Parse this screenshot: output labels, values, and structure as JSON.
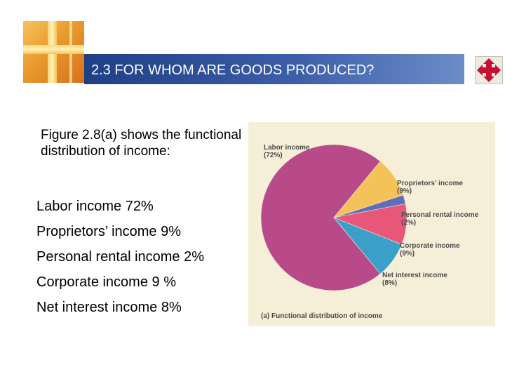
{
  "header": {
    "title": "2.3 FOR WHOM ARE GOODS PRODUCED?",
    "nav_icon": "four-way-arrows-icon"
  },
  "body": {
    "intro": "Figure 2.8(a) shows the functional distribution of income:",
    "items": [
      "Labor income 72%",
      "Proprietors’ income 9%",
      "Personal rental income 2%",
      "Corporate income 9 %",
      "Net interest income 8%"
    ]
  },
  "chart_data": {
    "type": "pie",
    "title": "(a) Functional distribution of income",
    "slices": [
      {
        "label": "Labor income",
        "value_label": "(72%)",
        "value": 72,
        "color": "#b84a8a"
      },
      {
        "label": "Proprietors' income",
        "value_label": "(9%)",
        "value": 9,
        "color": "#f5c25a"
      },
      {
        "label": "Personal rental income",
        "value_label": "(2%)",
        "value": 2,
        "color": "#5d6fb8"
      },
      {
        "label": "Corporate income",
        "value_label": "(9%)",
        "value": 9,
        "color": "#e8567a"
      },
      {
        "label": "Net interest income",
        "value_label": "(8%)",
        "value": 8,
        "color": "#3aa0c8"
      }
    ]
  },
  "colors": {
    "title_bar": "#1f3f86",
    "figure_background": "#f6efd8",
    "nav_icon": "#c8102e"
  }
}
